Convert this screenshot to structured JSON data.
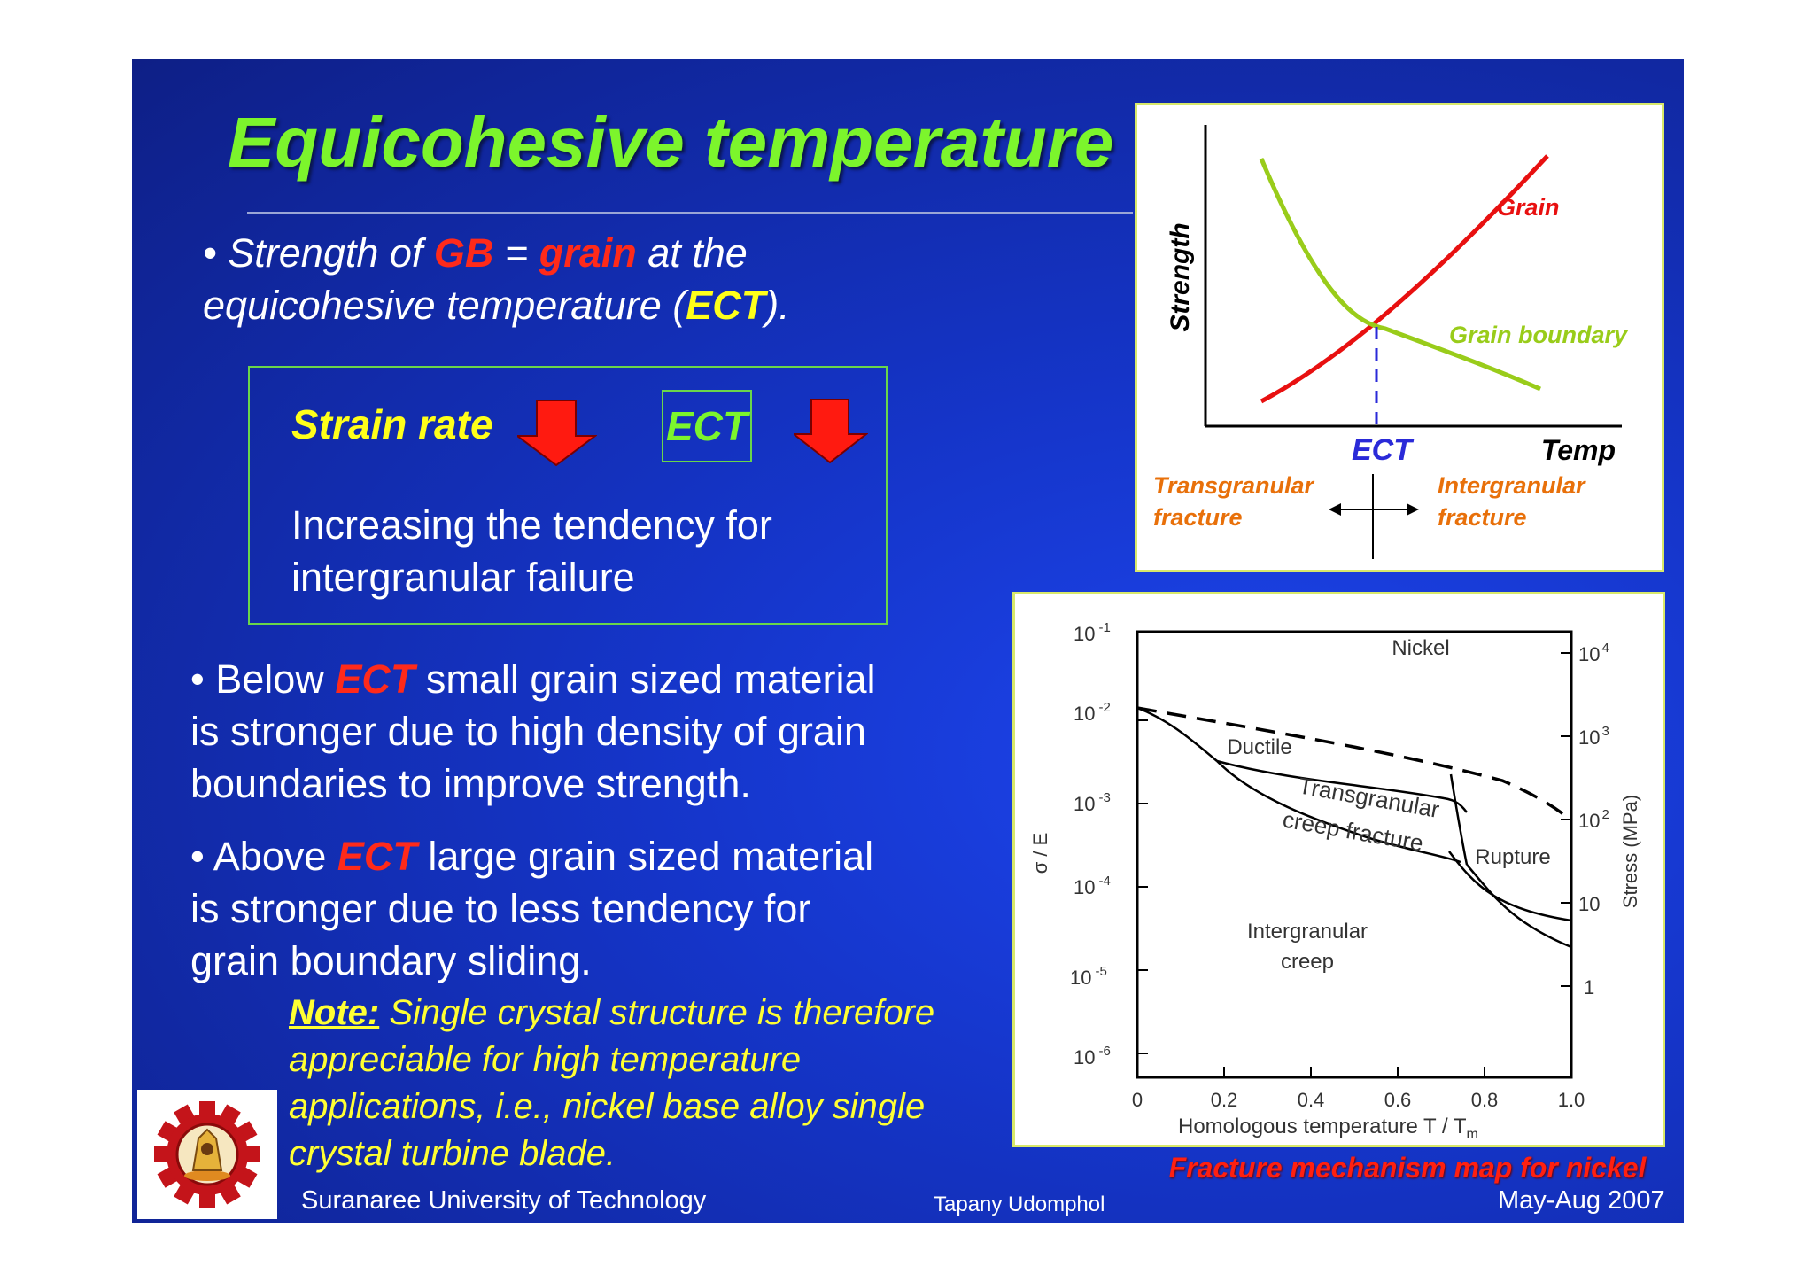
{
  "title": "Equicohesive temperature",
  "bullet1": {
    "line1_a": "• Strength of ",
    "gb": "GB",
    "eq": " = ",
    "grain": "grain",
    "line1_b": " at the",
    "line2_a": "equicohesive temperature (",
    "ect": "ECT",
    "line2_b": ")."
  },
  "box": {
    "strain_rate": "Strain rate",
    "ect": "ECT",
    "line1": "Increasing the tendency for",
    "line2": "intergranular failure"
  },
  "bullet2": {
    "a": "• Below ",
    "ect": "ECT",
    "b": " small grain sized material",
    "line2": "is stronger due to high density of grain",
    "line3": "boundaries to improve strength."
  },
  "bullet3": {
    "a": "• Above ",
    "ect": "ECT",
    "b": " large grain sized material",
    "line2": "is stronger due to less tendency for",
    "line3": "grain boundary sliding."
  },
  "note": {
    "label": "Note:",
    "line1": " Single crystal structure is therefore",
    "line2": "appreciable for high temperature",
    "line3": "applications, i.e., nickel base alloy single",
    "line4": "crystal turbine blade."
  },
  "ect_chart": {
    "ylabel": "Strength",
    "xlabel": "Temp",
    "ect_label": "ECT",
    "grain_label": "Grain",
    "gb_label": "Grain boundary",
    "left_label_1": "Transgranular",
    "left_label_2": "fracture",
    "right_label_1": "Intergranular",
    "right_label_2": "fracture"
  },
  "map": {
    "region_nickel": "Nickel",
    "region_ductile": "Ductile",
    "region_trans_1": "Transgranular",
    "region_trans_2": "creep fracture",
    "region_rupture": "Rupture",
    "region_inter_1": "Intergranular",
    "region_inter_2": "creep",
    "left_axis_label": "σ / E",
    "right_axis_label": "Stress (MPa)",
    "x_label": "Homologous temperature T / T",
    "x_label_sub": "m",
    "left_ticks": [
      {
        "base": "10",
        "exp": "-1"
      },
      {
        "base": "10",
        "exp": "-2"
      },
      {
        "base": "10",
        "exp": "-3"
      },
      {
        "base": "10",
        "exp": "-4"
      },
      {
        "base": "10",
        "exp": "-5"
      },
      {
        "base": "10",
        "exp": "-6"
      }
    ],
    "right_ticks": [
      {
        "base": "10",
        "exp": "4"
      },
      {
        "base": "10",
        "exp": "3"
      },
      {
        "base": "10",
        "exp": "2"
      },
      {
        "base": "10",
        "exp": ""
      },
      {
        "base": "1",
        "exp": ""
      }
    ],
    "x_ticks": [
      "0",
      "0.2",
      "0.4",
      "0.6",
      "0.8",
      "1.0"
    ]
  },
  "caption": "Fracture mechanism map for nickel",
  "footer": {
    "university": "Suranaree University of Technology",
    "author": "Tapany  Udomphol",
    "date": "May-Aug   2007"
  },
  "colors": {
    "title": "#7cf52c",
    "red": "#ff2a1a",
    "yellow": "#ffff1a",
    "grain_curve": "#e81010",
    "gb_curve": "#99cc1a",
    "ect_line": "#2a2ad8",
    "fracture_label": "#e8700a"
  }
}
